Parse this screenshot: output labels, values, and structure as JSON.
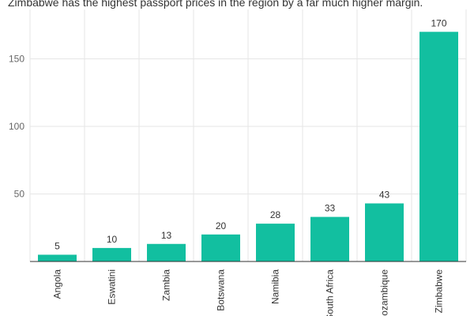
{
  "chart_data": {
    "type": "bar",
    "title": "Zimbabwe has the highest passport prices in the region by a far much higher margin.",
    "categories": [
      "Angola",
      "Eswatini",
      "Zambia",
      "Botswana",
      "Namibia",
      "South Africa",
      "Mozambique",
      "Zimbabwe"
    ],
    "values": [
      5,
      10,
      13,
      20,
      28,
      33,
      43,
      170
    ],
    "y_ticks": [
      50,
      100,
      150
    ],
    "ylim": [
      0,
      180
    ],
    "xlabel": "",
    "ylabel": "",
    "grid": true,
    "bar_color": "#12bfa0"
  }
}
